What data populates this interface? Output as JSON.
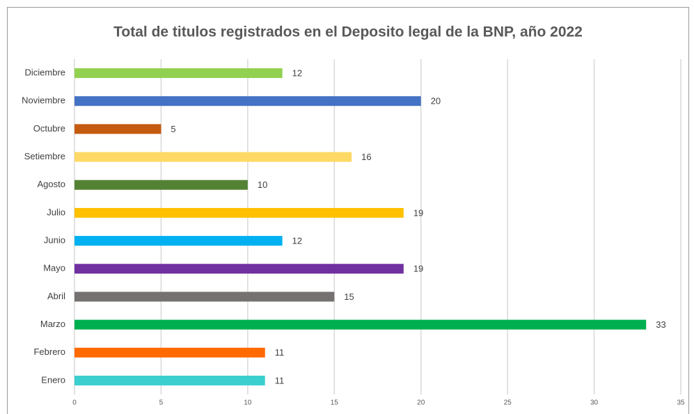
{
  "chart_data": {
    "type": "bar",
    "orientation": "horizontal",
    "title": "Total de titulos registrados en el Deposito legal de la BNP, año 2022",
    "categories": [
      "Enero",
      "Febrero",
      "Marzo",
      "Abril",
      "Mayo",
      "Junio",
      "Julio",
      "Agosto",
      "Setiembre",
      "Octubre",
      "Noviembre",
      "Diciembre"
    ],
    "values": [
      11,
      11,
      33,
      15,
      19,
      12,
      19,
      10,
      16,
      5,
      20,
      12
    ],
    "colors": [
      "#3ccfcf",
      "#ff6a00",
      "#00b050",
      "#767171",
      "#7030a0",
      "#00b0f0",
      "#ffc000",
      "#548235",
      "#ffd966",
      "#c55a11",
      "#4472c4",
      "#92d050"
    ],
    "xlim": [
      0,
      35
    ],
    "xticks": [
      0,
      5,
      10,
      15,
      20,
      25,
      30,
      35
    ],
    "grid": true
  }
}
